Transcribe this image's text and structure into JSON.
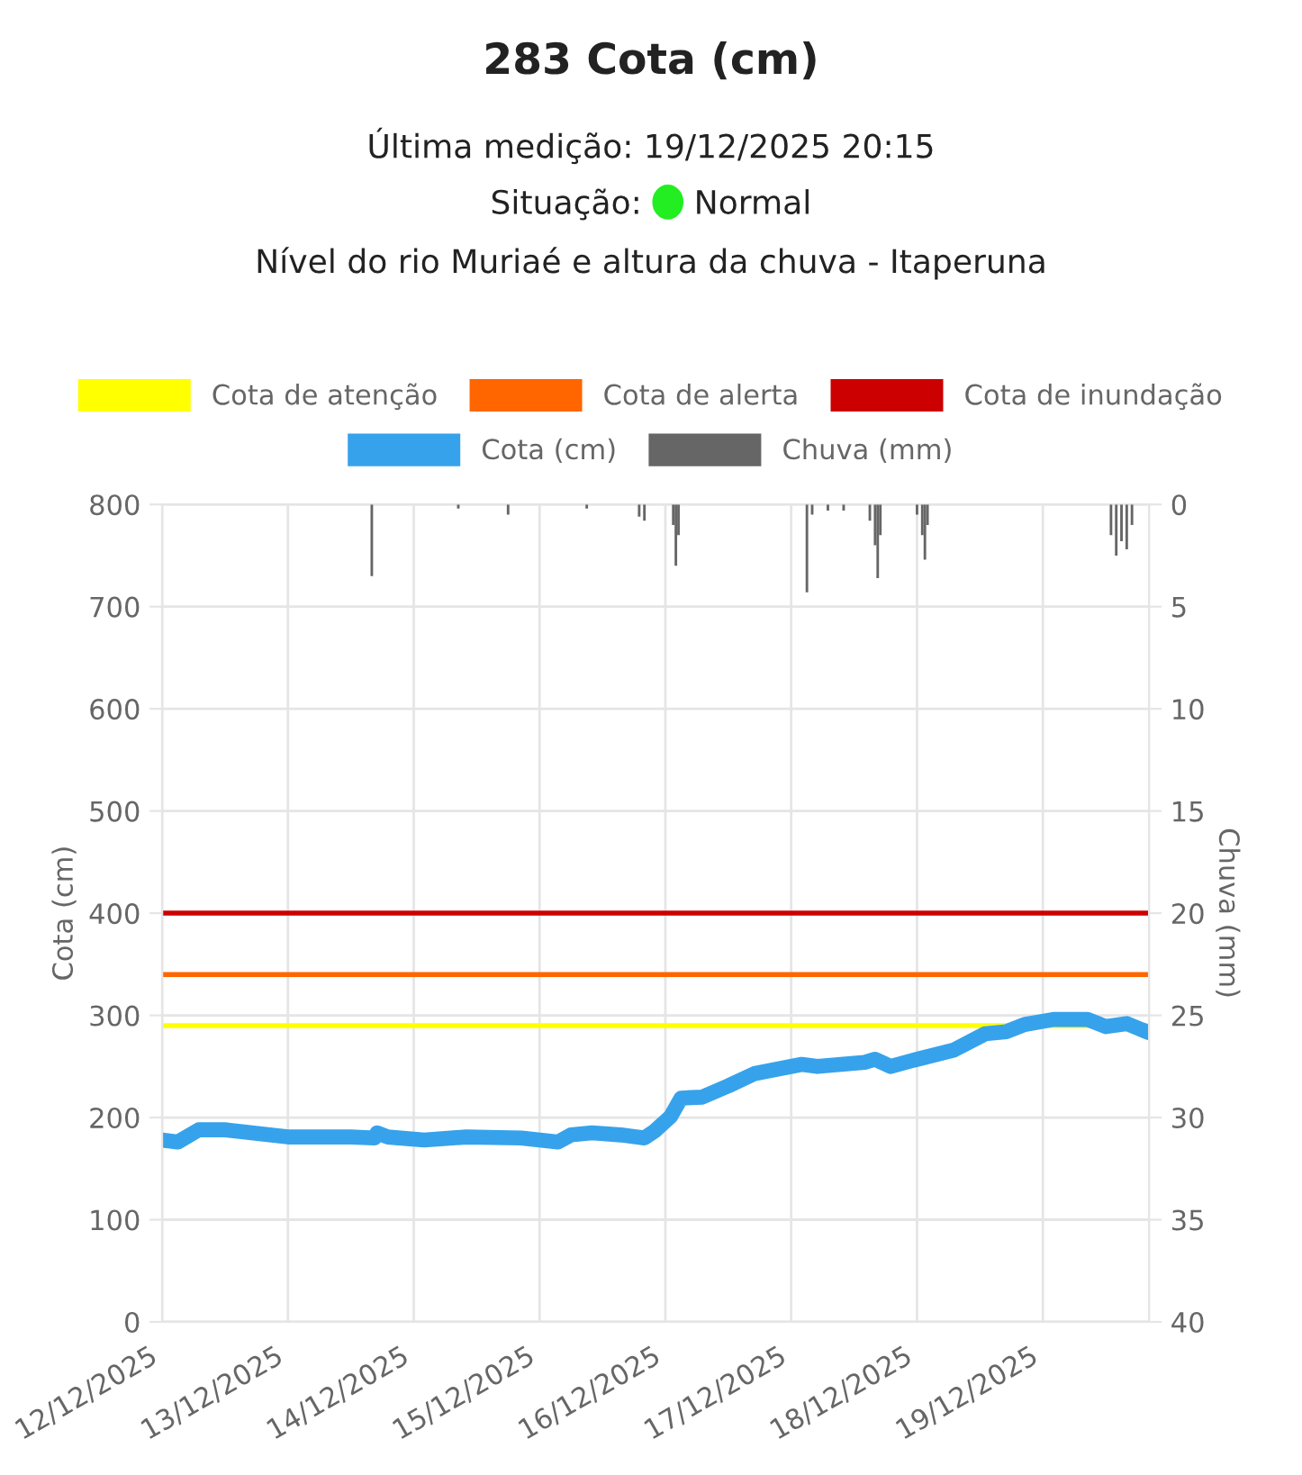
{
  "chart_data": {
    "type": "line",
    "title": "283 Cota (cm)",
    "subtitle": "Última medição: 19/12/2025 20:15",
    "annotations": [
      "Situação: Normal",
      "Nível do rio Muriaé e altura da chuva - Itaperuna"
    ],
    "ylabel": "Cota (cm)",
    "y2label": "Chuva (mm)",
    "xlim": [
      "2025-12-12T00:00",
      "2025-12-19T20:15"
    ],
    "xticks": [
      {
        "value": "2025-12-12",
        "label": "12/12/2025"
      },
      {
        "value": "2025-12-13",
        "label": "13/12/2025"
      },
      {
        "value": "2025-12-14",
        "label": "14/12/2025"
      },
      {
        "value": "2025-12-15",
        "label": "15/12/2025"
      },
      {
        "value": "2025-12-16",
        "label": "16/12/2025"
      },
      {
        "value": "2025-12-17",
        "label": "17/12/2025"
      },
      {
        "value": "2025-12-18",
        "label": "18/12/2025"
      },
      {
        "value": "2025-12-19",
        "label": "19/12/2025"
      }
    ],
    "ylim": [
      0,
      800
    ],
    "yticks": [
      0,
      100,
      200,
      300,
      400,
      500,
      600,
      700,
      800
    ],
    "y2lim": [
      40,
      0
    ],
    "y2ticks": [
      0,
      5,
      10,
      15,
      20,
      25,
      30,
      35,
      40
    ],
    "grid": true,
    "legend": "top",
    "marker": "none",
    "line_style": "solid",
    "ref_lines": [
      {
        "axis": "y",
        "value": 290,
        "label": "Cota de atenção",
        "color": "#ffff00"
      },
      {
        "axis": "y",
        "value": 340,
        "label": "Cota de alerta",
        "color": "#ff6600"
      },
      {
        "axis": "y",
        "value": 400,
        "label": "Cota de inundação",
        "color": "#cc0000"
      }
    ],
    "series": [
      {
        "name": "Cota (cm)",
        "color": "#36a2eb",
        "x": [
          "2025-12-12T00:00",
          "2025-12-12T03:00",
          "2025-12-12T07:00",
          "2025-12-12T12:00",
          "2025-12-12T20:30",
          "2025-12-13T00:00",
          "2025-12-13T12:00",
          "2025-12-13T16:30",
          "2025-12-13T17:00",
          "2025-12-13T19:00",
          "2025-12-14T02:00",
          "2025-12-14T10:00",
          "2025-12-14T20:30",
          "2025-12-15T03:30",
          "2025-12-15T06:00",
          "2025-12-15T10:00",
          "2025-12-15T15:30",
          "2025-12-15T20:00",
          "2025-12-15T22:00",
          "2025-12-16T01:00",
          "2025-12-16T03:00",
          "2025-12-16T07:00",
          "2025-12-16T12:00",
          "2025-12-16T17:00",
          "2025-12-17T02:00",
          "2025-12-17T05:00",
          "2025-12-17T14:00",
          "2025-12-17T16:00",
          "2025-12-17T19:00",
          "2025-12-18T00:00",
          "2025-12-18T07:00",
          "2025-12-18T13:00",
          "2025-12-18T17:00",
          "2025-12-18T20:30",
          "2025-12-19T02:00",
          "2025-12-19T08:30",
          "2025-12-19T12:00",
          "2025-12-19T16:00",
          "2025-12-19T20:15"
        ],
        "values": [
          178,
          176,
          188,
          188,
          183,
          181,
          181,
          180,
          185,
          181,
          178,
          181,
          180,
          176,
          183,
          185,
          183,
          180,
          187,
          201,
          219,
          220,
          231,
          243,
          252,
          250,
          254,
          257,
          250,
          257,
          266,
          282,
          284,
          291,
          296,
          296,
          289,
          292,
          283
        ]
      },
      {
        "name": "Chuva (mm)",
        "type": "bar",
        "axis": "y2",
        "color": "#666666",
        "x": [
          "2025-12-13T16:00",
          "2025-12-14T08:30",
          "2025-12-14T18:00",
          "2025-12-15T09:00",
          "2025-12-15T19:00",
          "2025-12-15T20:00",
          "2025-12-16T01:30",
          "2025-12-16T02:00",
          "2025-12-16T02:30",
          "2025-12-17T03:00",
          "2025-12-17T04:00",
          "2025-12-17T07:00",
          "2025-12-17T10:00",
          "2025-12-17T15:00",
          "2025-12-17T16:00",
          "2025-12-17T16:30",
          "2025-12-17T17:00",
          "2025-12-18T00:00",
          "2025-12-18T01:00",
          "2025-12-18T01:30",
          "2025-12-18T02:00",
          "2025-12-19T13:00",
          "2025-12-19T14:00",
          "2025-12-19T15:00",
          "2025-12-19T16:00",
          "2025-12-19T17:00"
        ],
        "values": [
          3.5,
          0.2,
          0.5,
          0.2,
          0.6,
          0.8,
          1.0,
          3.0,
          1.5,
          4.3,
          0.5,
          0.3,
          0.3,
          0.8,
          2.0,
          3.6,
          1.5,
          0.5,
          1.5,
          2.7,
          1.0,
          1.5,
          2.5,
          1.8,
          2.2,
          1.0
        ]
      }
    ]
  }
}
